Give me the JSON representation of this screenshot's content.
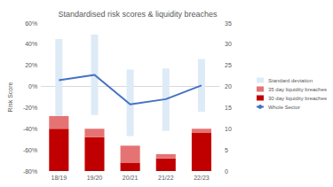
{
  "chart_data": {
    "type": "bar",
    "title": "Standardised risk scores & liquidity breaches",
    "y_label": "Risk Score",
    "categories": [
      "18/19",
      "19/20",
      "20/21",
      "21/22",
      "22/23"
    ],
    "series": [
      {
        "name": "Standard deviation",
        "type": "range",
        "color": "#deebf7",
        "axis": "y",
        "low": [
          -34,
          -27,
          -47,
          -42,
          -24
        ],
        "high": [
          45,
          49,
          16,
          17,
          26
        ]
      },
      {
        "name": "35 day liquidity breaches",
        "type": "bar",
        "color": "#e57373",
        "axis": "y2",
        "values": [
          3,
          2,
          4,
          1,
          1
        ]
      },
      {
        "name": "30 day liquidity breaches",
        "type": "bar",
        "color": "#c00000",
        "axis": "y2",
        "values": [
          10,
          8,
          2,
          3,
          9
        ]
      },
      {
        "name": "Whole Sector",
        "type": "line",
        "color": "#4472c4",
        "axis": "y",
        "values": [
          6,
          11,
          -17,
          -12,
          1
        ]
      }
    ],
    "stacked": true,
    "ylim": [
      -80,
      60
    ],
    "yticks": [
      {
        "value": -80,
        "label": "-80%"
      },
      {
        "value": -60,
        "label": "-60%"
      },
      {
        "value": -40,
        "label": "-40%"
      },
      {
        "value": -20,
        "label": "-20%"
      },
      {
        "value": 0,
        "label": "0%"
      },
      {
        "value": 20,
        "label": "20%"
      },
      {
        "value": 40,
        "label": "40%"
      },
      {
        "value": 60,
        "label": "60%"
      }
    ],
    "y2lim": [
      0,
      35
    ],
    "y2ticks": [
      0,
      5,
      10,
      15,
      20,
      25,
      30,
      35
    ],
    "grid": false,
    "legend": "right"
  }
}
